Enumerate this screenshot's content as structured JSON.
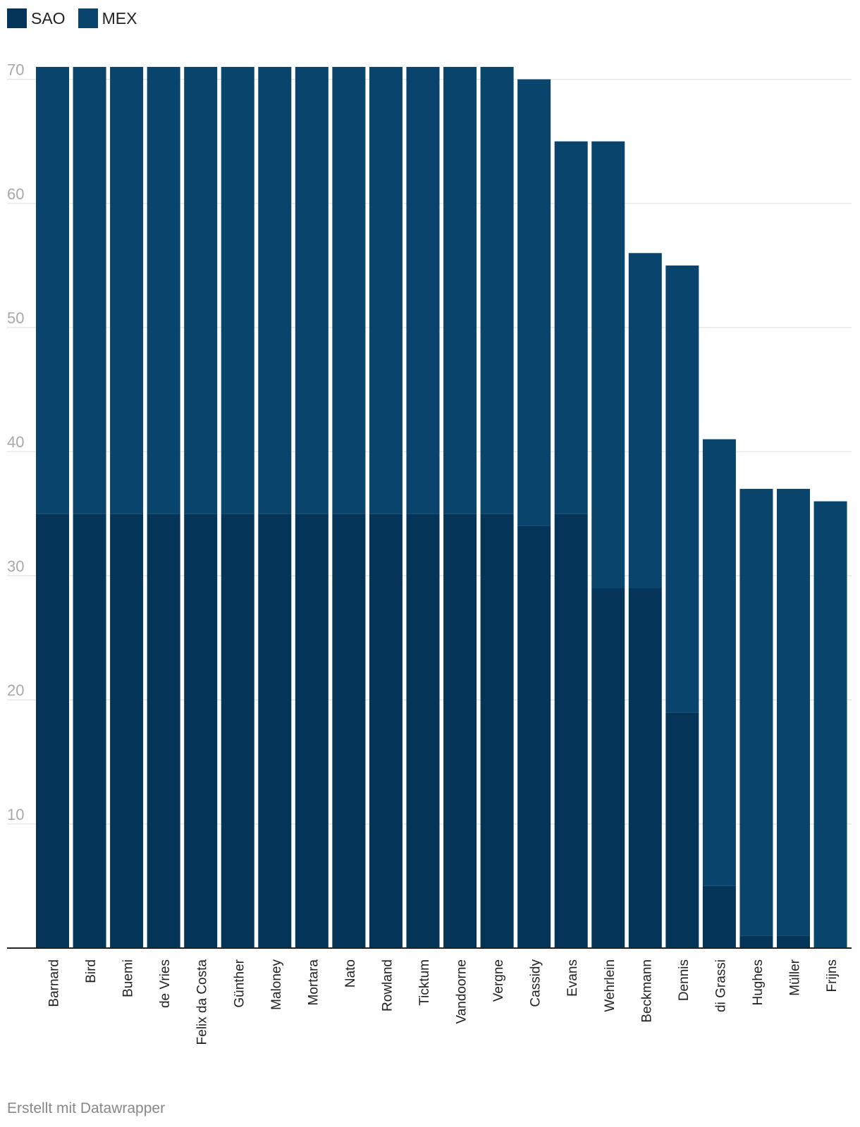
{
  "chart_data": {
    "type": "bar",
    "stacked": true,
    "categories": [
      "Barnard",
      "Bird",
      "Buemi",
      "de Vries",
      "Felix da Costa",
      "Günther",
      "Maloney",
      "Mortara",
      "Nato",
      "Rowland",
      "Ticktum",
      "Vandoorne",
      "Vergne",
      "Cassidy",
      "Evans",
      "Wehrlein",
      "Beckmann",
      "Dennis",
      "di Grassi",
      "Hughes",
      "Müller",
      "Frijns"
    ],
    "series": [
      {
        "name": "SAO",
        "color": "#053459",
        "values": [
          35,
          35,
          35,
          35,
          35,
          35,
          35,
          35,
          35,
          35,
          35,
          35,
          35,
          34,
          35,
          29,
          29,
          19,
          5,
          1,
          1,
          0
        ]
      },
      {
        "name": "MEX",
        "color": "#08446c",
        "values": [
          36,
          36,
          36,
          36,
          36,
          36,
          36,
          36,
          36,
          36,
          36,
          36,
          36,
          36,
          30,
          36,
          27,
          36,
          36,
          36,
          36,
          36
        ]
      }
    ],
    "y_ticks": [
      10,
      20,
      30,
      40,
      50,
      60,
      70
    ],
    "ylim": [
      0,
      70
    ],
    "grid": true,
    "legend": "top-left",
    "title": "",
    "xlabel": "",
    "ylabel": ""
  },
  "footer": "Erstellt mit Datawrapper"
}
